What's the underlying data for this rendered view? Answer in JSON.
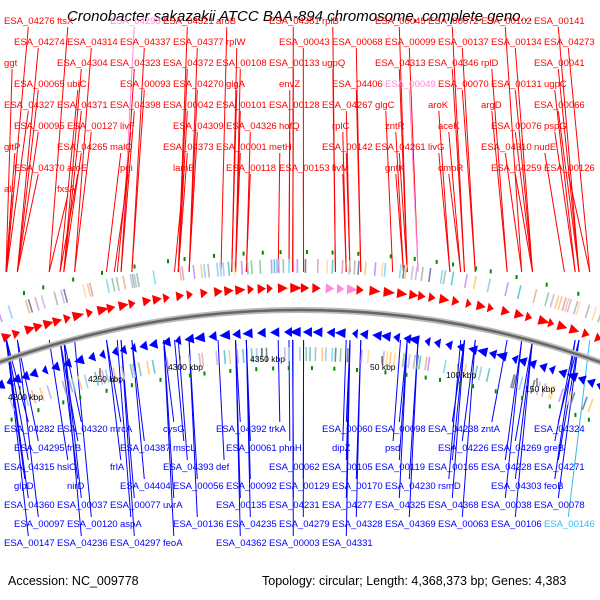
{
  "title": "Cronobacter sakazakii ATCC BAA-894 chromosome, complete geno...",
  "footer": {
    "accession": "Accession: NC_009778",
    "summary": "Topology: circular; Length: 4,368,373 bp; Genes: 4,383"
  },
  "colors": {
    "forward": "#ff0000",
    "reverse": "#0000ff",
    "highlight_forward": "#ff88dd",
    "highlight_reverse": "#33bbee",
    "backbone": "#888888",
    "cog_dot": "#008800"
  },
  "scale_ticks": [
    {
      "label": "4200 kbp"
    },
    {
      "label": "4250 kbp"
    },
    {
      "label": "4300 kbp"
    },
    {
      "label": "4350 kbp"
    },
    {
      "label": "50 kbp"
    },
    {
      "label": "100 kbp"
    },
    {
      "label": "150 kbp"
    }
  ],
  "forward_labels": [
    "ESA_04276",
    "ftsX",
    "ESA_04298",
    "ESA_04321",
    "aroB",
    "ESA_04381",
    "rplB",
    "ESA_00045",
    "ESA_00072",
    "ESA_00102",
    "ESA_00141",
    "ESA_04274",
    "ESA_04314",
    "ESA_04337",
    "ESA_04377",
    "rplW",
    "ESA_00043",
    "ESA_00068",
    "ESA_00099",
    "ESA_00137",
    "ESA_00134",
    "ESA_04273",
    "ggt",
    "ESA_04304",
    "ESA_04323",
    "ESA_04372",
    "ESA_00108",
    "ESA_00133",
    "ugpQ",
    "ESA_04313",
    "ESA_04346",
    "rplD",
    "ESA_00041",
    "ESA_00065",
    "ubiC",
    "ESA_00093",
    "ESA_04270",
    "glgA",
    "envZ",
    "ESA_04406",
    "ESA_00049",
    "ESA_00070",
    "ESA_00131",
    "ugpC",
    "ESA_04327",
    "ESA_04371",
    "ESA_04398",
    "ESA_00042",
    "ESA_00101",
    "ESA_00128",
    "ESA_04267",
    "glgC",
    "aroK",
    "argD",
    "ESA_00066",
    "ESA_00095",
    "ESA_00127",
    "livF",
    "ESA_04309",
    "ESA_04326",
    "hofQ",
    "rplC",
    "zntR",
    "aceK",
    "ESA_00076",
    "pspG",
    "gltP",
    "ESA_04265",
    "malQ",
    "ESA_04373",
    "ESA_00001",
    "metH",
    "ESA_00142",
    "ESA_04261",
    "livG",
    "ESA_04310",
    "nudE",
    "ESA_04370",
    "aroE",
    "pgi",
    "lamB",
    "ESA_00118",
    "ESA_00153",
    "livM",
    "gntK",
    "ompR",
    "ESA_04259",
    "ESA_00126",
    "alr",
    "fxsA"
  ],
  "reverse_labels": [
    "ESA_04282",
    "ESA_04320",
    "mrcA",
    "cysG",
    "ESA_04392",
    "trkA",
    "ESA_00060",
    "ESA_00098",
    "ESA_04238",
    "zntA",
    "ESA_04324",
    "ESA_04295",
    "frlB",
    "ESA_04387",
    "mscL",
    "ESA_00061",
    "phnH",
    "dipZ",
    "psd",
    "ESA_04226",
    "ESA_04269",
    "greB",
    "ESA_04315",
    "hslO",
    "frlA",
    "ESA_04393",
    "def",
    "ESA_00062",
    "ESA_00105",
    "ESA_00119",
    "ESA_00165",
    "ESA_04228",
    "ESA_04271",
    "glpD",
    "nirD",
    "ESA_04404",
    "ESA_00056",
    "ESA_00092",
    "ESA_00129",
    "ESA_00170",
    "ESA_04230",
    "rsmD",
    "ESA_04303",
    "feoB",
    "ESA_04360",
    "ESA_00037",
    "ESA_00077",
    "uvrA",
    "ESA_00135",
    "ESA_04231",
    "ESA_04277",
    "ESA_04325",
    "ESA_04368",
    "ESA_00038",
    "ESA_00078",
    "ESA_00097",
    "ESA_00120",
    "aspA",
    "ESA_00136",
    "ESA_04235",
    "ESA_04279",
    "ESA_04328",
    "ESA_04369",
    "ESA_00063",
    "ESA_00106",
    "ESA_00146",
    "ESA_00147",
    "ESA_04236",
    "ESA_04297",
    "feoA",
    "ESA_04362",
    "ESA_00003",
    "ESA_04331"
  ]
}
